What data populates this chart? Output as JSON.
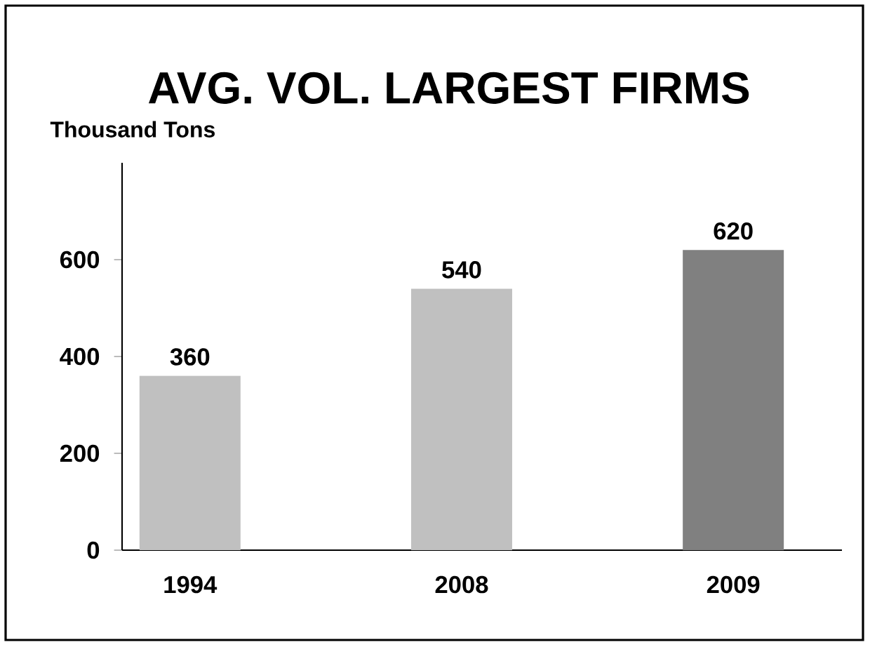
{
  "chart_data": {
    "type": "bar",
    "title": "AVG. VOL. LARGEST FIRMS",
    "ylabel": "Thousand Tons",
    "categories": [
      "1994",
      "2008",
      "2009"
    ],
    "values": [
      360,
      540,
      620
    ],
    "colors": [
      "#c0c0c0",
      "#c0c0c0",
      "#808080"
    ],
    "ylim": [
      0,
      800
    ],
    "yticks": [
      0,
      200,
      400,
      600
    ],
    "data_labels": true
  }
}
